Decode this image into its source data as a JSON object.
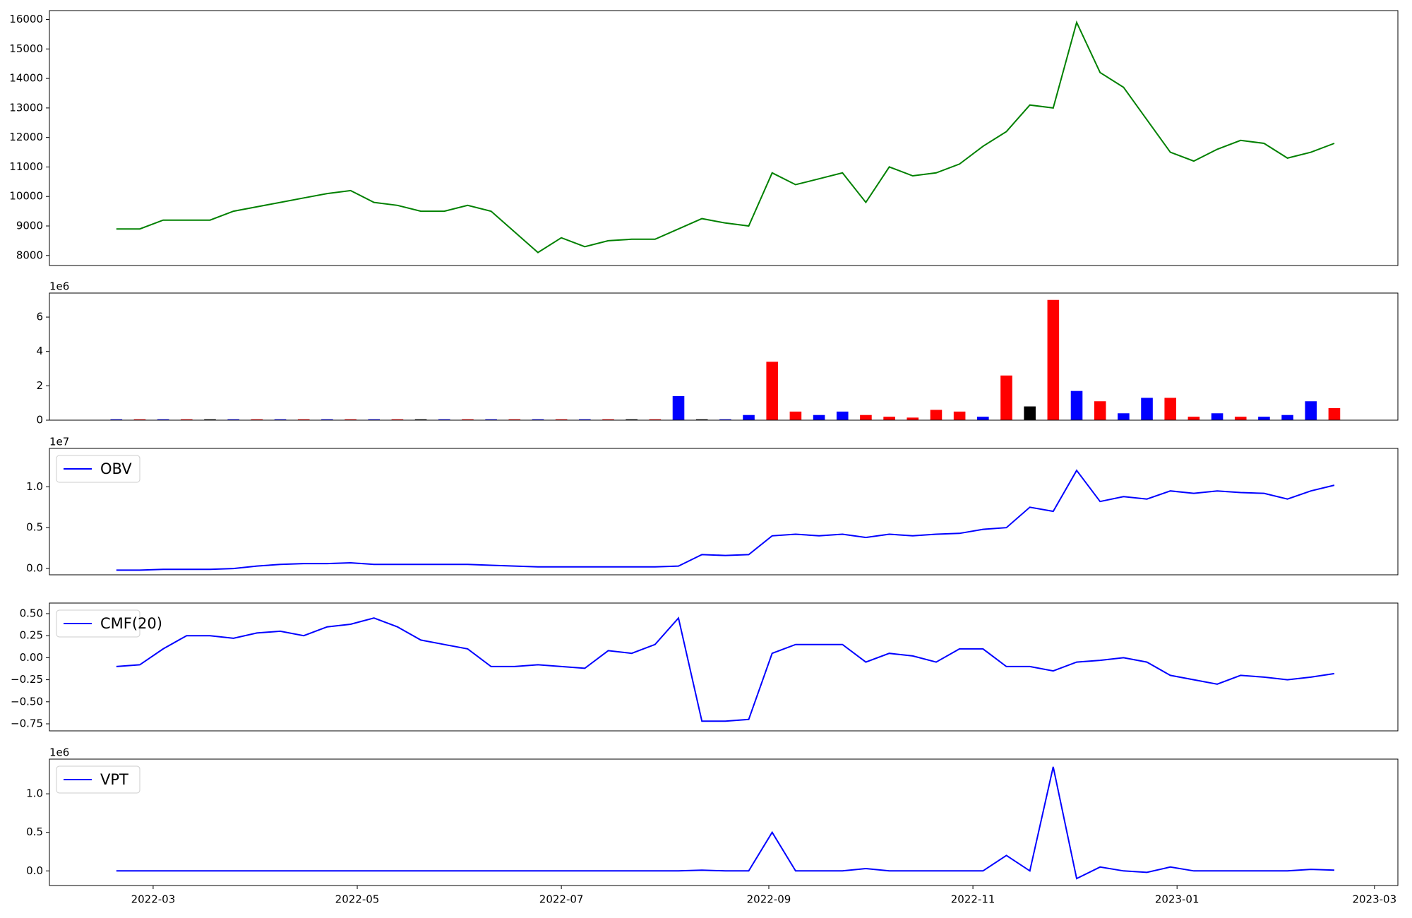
{
  "chart_data": [
    {
      "type": "line",
      "color": "#008000",
      "x": [
        "2022-02-18",
        "2022-02-25",
        "2022-03-04",
        "2022-03-11",
        "2022-03-18",
        "2022-03-25",
        "2022-04-01",
        "2022-04-08",
        "2022-04-15",
        "2022-04-22",
        "2022-04-29",
        "2022-05-06",
        "2022-05-13",
        "2022-05-20",
        "2022-05-27",
        "2022-06-03",
        "2022-06-10",
        "2022-06-17",
        "2022-06-24",
        "2022-07-01",
        "2022-07-08",
        "2022-07-15",
        "2022-07-22",
        "2022-07-29",
        "2022-08-05",
        "2022-08-12",
        "2022-08-19",
        "2022-08-26",
        "2022-09-02",
        "2022-09-09",
        "2022-09-16",
        "2022-09-23",
        "2022-09-30",
        "2022-10-07",
        "2022-10-14",
        "2022-10-21",
        "2022-10-28",
        "2022-11-04",
        "2022-11-11",
        "2022-11-18",
        "2022-11-25",
        "2022-12-02",
        "2022-12-09",
        "2022-12-16",
        "2022-12-23",
        "2022-12-30",
        "2023-01-06",
        "2023-01-13",
        "2023-01-20",
        "2023-01-27",
        "2023-02-03",
        "2023-02-10",
        "2023-02-17"
      ],
      "values": [
        8900,
        8900,
        9200,
        9200,
        9200,
        9500,
        9650,
        9800,
        9950,
        10100,
        10200,
        9800,
        9700,
        9500,
        9500,
        9700,
        9500,
        8800,
        8100,
        8600,
        8300,
        8500,
        8550,
        8550,
        8900,
        9250,
        9100,
        9000,
        10800,
        10400,
        10600,
        10800,
        9800,
        11000,
        10700,
        10800,
        11100,
        11700,
        12200,
        13100,
        13000,
        15900,
        14200,
        13700,
        12600,
        11500,
        11200,
        11600,
        11900,
        11800,
        11300,
        11500,
        11800
      ],
      "xlim": [
        "2022-01-29",
        "2023-03-08"
      ],
      "ylim": [
        7660,
        16300
      ],
      "yticks": [
        8000,
        9000,
        10000,
        11000,
        12000,
        13000,
        14000,
        15000,
        16000
      ]
    },
    {
      "type": "bar",
      "offset_text": "1e6",
      "x": [
        "2022-02-18",
        "2022-02-25",
        "2022-03-04",
        "2022-03-11",
        "2022-03-18",
        "2022-03-25",
        "2022-04-01",
        "2022-04-08",
        "2022-04-15",
        "2022-04-22",
        "2022-04-29",
        "2022-05-06",
        "2022-05-13",
        "2022-05-20",
        "2022-05-27",
        "2022-06-03",
        "2022-06-10",
        "2022-06-17",
        "2022-06-24",
        "2022-07-01",
        "2022-07-08",
        "2022-07-15",
        "2022-07-22",
        "2022-07-29",
        "2022-08-05",
        "2022-08-12",
        "2022-08-19",
        "2022-08-26",
        "2022-09-02",
        "2022-09-09",
        "2022-09-16",
        "2022-09-23",
        "2022-09-30",
        "2022-10-07",
        "2022-10-14",
        "2022-10-21",
        "2022-10-28",
        "2022-11-04",
        "2022-11-11",
        "2022-11-18",
        "2022-11-25",
        "2022-12-02",
        "2022-12-09",
        "2022-12-16",
        "2022-12-23",
        "2022-12-30",
        "2023-01-06",
        "2023-01-13",
        "2023-01-20",
        "2023-01-27",
        "2023-02-03",
        "2023-02-10",
        "2023-02-17"
      ],
      "values": [
        50000,
        50000,
        50000,
        50000,
        50000,
        50000,
        50000,
        50000,
        50000,
        50000,
        50000,
        50000,
        50000,
        50000,
        50000,
        50000,
        50000,
        50000,
        50000,
        50000,
        50000,
        50000,
        50000,
        50000,
        1400000,
        50000,
        50000,
        300000,
        3400000,
        500000,
        300000,
        500000,
        300000,
        200000,
        150000,
        600000,
        500000,
        200000,
        2600000,
        800000,
        7000000,
        1700000,
        1100000,
        400000,
        1300000,
        1300000,
        200000,
        400000,
        200000,
        200000,
        300000,
        1100000,
        700000
      ],
      "colors": [
        "blue",
        "red",
        "blue",
        "red",
        "black",
        "blue",
        "red",
        "blue",
        "red",
        "blue",
        "red",
        "blue",
        "red",
        "black",
        "blue",
        "red",
        "blue",
        "red",
        "blue",
        "red",
        "blue",
        "red",
        "black",
        "red",
        "blue",
        "black",
        "blue",
        "blue",
        "red",
        "red",
        "blue",
        "blue",
        "red",
        "red",
        "red",
        "red",
        "red",
        "blue",
        "red",
        "black",
        "red",
        "blue",
        "red",
        "blue",
        "blue",
        "red",
        "red",
        "blue",
        "red",
        "blue",
        "blue",
        "blue",
        "red"
      ],
      "xlim": [
        "2022-01-29",
        "2023-03-08"
      ],
      "ylim": [
        0,
        7400000
      ],
      "yticks": [
        0,
        {
          "value": 2000000,
          "label": "2"
        },
        {
          "value": 4000000,
          "label": "4"
        },
        {
          "value": 6000000,
          "label": "6"
        }
      ]
    },
    {
      "type": "line",
      "offset_text": "1e7",
      "legend": "upper left",
      "x": [
        "2022-02-18",
        "2022-02-25",
        "2022-03-04",
        "2022-03-11",
        "2022-03-18",
        "2022-03-25",
        "2022-04-01",
        "2022-04-08",
        "2022-04-15",
        "2022-04-22",
        "2022-04-29",
        "2022-05-06",
        "2022-05-13",
        "2022-05-20",
        "2022-05-27",
        "2022-06-03",
        "2022-06-10",
        "2022-06-17",
        "2022-06-24",
        "2022-07-01",
        "2022-07-08",
        "2022-07-15",
        "2022-07-22",
        "2022-07-29",
        "2022-08-05",
        "2022-08-12",
        "2022-08-19",
        "2022-08-26",
        "2022-09-02",
        "2022-09-09",
        "2022-09-16",
        "2022-09-23",
        "2022-09-30",
        "2022-10-07",
        "2022-10-14",
        "2022-10-21",
        "2022-10-28",
        "2022-11-04",
        "2022-11-11",
        "2022-11-18",
        "2022-11-25",
        "2022-12-02",
        "2022-12-09",
        "2022-12-16",
        "2022-12-23",
        "2022-12-30",
        "2023-01-06",
        "2023-01-13",
        "2023-01-20",
        "2023-01-27",
        "2023-02-03",
        "2023-02-10",
        "2023-02-17"
      ],
      "series": [
        {
          "name": "OBV",
          "color": "#0000ff",
          "values": [
            -200000,
            -200000,
            -100000,
            -100000,
            -100000,
            0,
            300000,
            500000,
            600000,
            600000,
            700000,
            500000,
            500000,
            500000,
            500000,
            500000,
            400000,
            300000,
            200000,
            200000,
            200000,
            200000,
            200000,
            200000,
            300000,
            1700000,
            1600000,
            1700000,
            4000000,
            4200000,
            4000000,
            4200000,
            3800000,
            4200000,
            4000000,
            4200000,
            4300000,
            4800000,
            5000000,
            7500000,
            7000000,
            12000000,
            8200000,
            8800000,
            8500000,
            9500000,
            9200000,
            9500000,
            9300000,
            9200000,
            8500000,
            9500000,
            10200000
          ]
        }
      ],
      "xlim": [
        "2022-01-29",
        "2023-03-08"
      ],
      "ylim": [
        -770000,
        14700000
      ],
      "yticks": [
        {
          "value": 0,
          "label": "0.0"
        },
        {
          "value": 5000000,
          "label": "0.5"
        },
        {
          "value": 10000000,
          "label": "1.0"
        }
      ]
    },
    {
      "type": "line",
      "legend": "upper left",
      "x": [
        "2022-02-18",
        "2022-02-25",
        "2022-03-04",
        "2022-03-11",
        "2022-03-18",
        "2022-03-25",
        "2022-04-01",
        "2022-04-08",
        "2022-04-15",
        "2022-04-22",
        "2022-04-29",
        "2022-05-06",
        "2022-05-13",
        "2022-05-20",
        "2022-05-27",
        "2022-06-03",
        "2022-06-10",
        "2022-06-17",
        "2022-06-24",
        "2022-07-01",
        "2022-07-08",
        "2022-07-15",
        "2022-07-22",
        "2022-07-29",
        "2022-08-05",
        "2022-08-12",
        "2022-08-19",
        "2022-08-26",
        "2022-09-02",
        "2022-09-09",
        "2022-09-16",
        "2022-09-23",
        "2022-09-30",
        "2022-10-07",
        "2022-10-14",
        "2022-10-21",
        "2022-10-28",
        "2022-11-04",
        "2022-11-11",
        "2022-11-18",
        "2022-11-25",
        "2022-12-02",
        "2022-12-09",
        "2022-12-16",
        "2022-12-23",
        "2022-12-30",
        "2023-01-06",
        "2023-01-13",
        "2023-01-20",
        "2023-01-27",
        "2023-02-03",
        "2023-02-10",
        "2023-02-17"
      ],
      "series": [
        {
          "name": "CMF(20)",
          "color": "#0000ff",
          "values": [
            -0.1,
            -0.08,
            0.1,
            0.25,
            0.25,
            0.22,
            0.28,
            0.3,
            0.25,
            0.35,
            0.38,
            0.45,
            0.35,
            0.2,
            0.15,
            0.1,
            -0.1,
            -0.1,
            -0.08,
            -0.1,
            -0.12,
            0.08,
            0.05,
            0.15,
            0.45,
            -0.72,
            -0.72,
            -0.7,
            0.05,
            0.15,
            0.15,
            0.15,
            -0.05,
            0.05,
            0.02,
            -0.05,
            0.1,
            0.1,
            -0.1,
            -0.1,
            -0.15,
            -0.05,
            -0.03,
            0.0,
            -0.05,
            -0.2,
            -0.25,
            -0.3,
            -0.2,
            -0.22,
            -0.25,
            -0.22,
            -0.18
          ]
        }
      ],
      "xlim": [
        "2022-01-29",
        "2023-03-08"
      ],
      "ylim": [
        -0.83,
        0.62
      ],
      "yticks": [
        {
          "value": -0.75,
          "label": "−0.75"
        },
        {
          "value": -0.5,
          "label": "−0.50"
        },
        {
          "value": -0.25,
          "label": "−0.25"
        },
        {
          "value": 0,
          "label": "0.00"
        },
        {
          "value": 0.25,
          "label": "0.25"
        },
        {
          "value": 0.5,
          "label": "0.50"
        }
      ]
    },
    {
      "type": "line",
      "offset_text": "1e6",
      "legend": "upper left",
      "x": [
        "2022-02-18",
        "2022-02-25",
        "2022-03-04",
        "2022-03-11",
        "2022-03-18",
        "2022-03-25",
        "2022-04-01",
        "2022-04-08",
        "2022-04-15",
        "2022-04-22",
        "2022-04-29",
        "2022-05-06",
        "2022-05-13",
        "2022-05-20",
        "2022-05-27",
        "2022-06-03",
        "2022-06-10",
        "2022-06-17",
        "2022-06-24",
        "2022-07-01",
        "2022-07-08",
        "2022-07-15",
        "2022-07-22",
        "2022-07-29",
        "2022-08-05",
        "2022-08-12",
        "2022-08-19",
        "2022-08-26",
        "2022-09-02",
        "2022-09-09",
        "2022-09-16",
        "2022-09-23",
        "2022-09-30",
        "2022-10-07",
        "2022-10-14",
        "2022-10-21",
        "2022-10-28",
        "2022-11-04",
        "2022-11-11",
        "2022-11-18",
        "2022-11-25",
        "2022-12-02",
        "2022-12-09",
        "2022-12-16",
        "2022-12-23",
        "2022-12-30",
        "2023-01-06",
        "2023-01-13",
        "2023-01-20",
        "2023-01-27",
        "2023-02-03",
        "2023-02-10",
        "2023-02-17"
      ],
      "series": [
        {
          "name": "VPT",
          "color": "#0000ff",
          "values": [
            0,
            0,
            0,
            0,
            0,
            0,
            0,
            0,
            0,
            0,
            0,
            0,
            0,
            0,
            0,
            0,
            0,
            0,
            0,
            0,
            0,
            0,
            0,
            0,
            0,
            10000,
            0,
            0,
            500000,
            0,
            0,
            0,
            30000,
            0,
            0,
            0,
            0,
            0,
            200000,
            0,
            1350000,
            -100000,
            50000,
            0,
            -20000,
            50000,
            0,
            0,
            0,
            0,
            0,
            20000,
            10000
          ]
        }
      ],
      "xlim": [
        "2022-01-29",
        "2023-03-08"
      ],
      "ylim": [
        -190000,
        1450000
      ],
      "yticks": [
        {
          "value": 0,
          "label": "0.0"
        },
        {
          "value": 500000,
          "label": "0.5"
        },
        {
          "value": 1000000,
          "label": "1.0"
        }
      ],
      "xticks": [
        "2022-03",
        "2022-05",
        "2022-07",
        "2022-09",
        "2022-11",
        "2023-01",
        "2023-03"
      ]
    }
  ]
}
